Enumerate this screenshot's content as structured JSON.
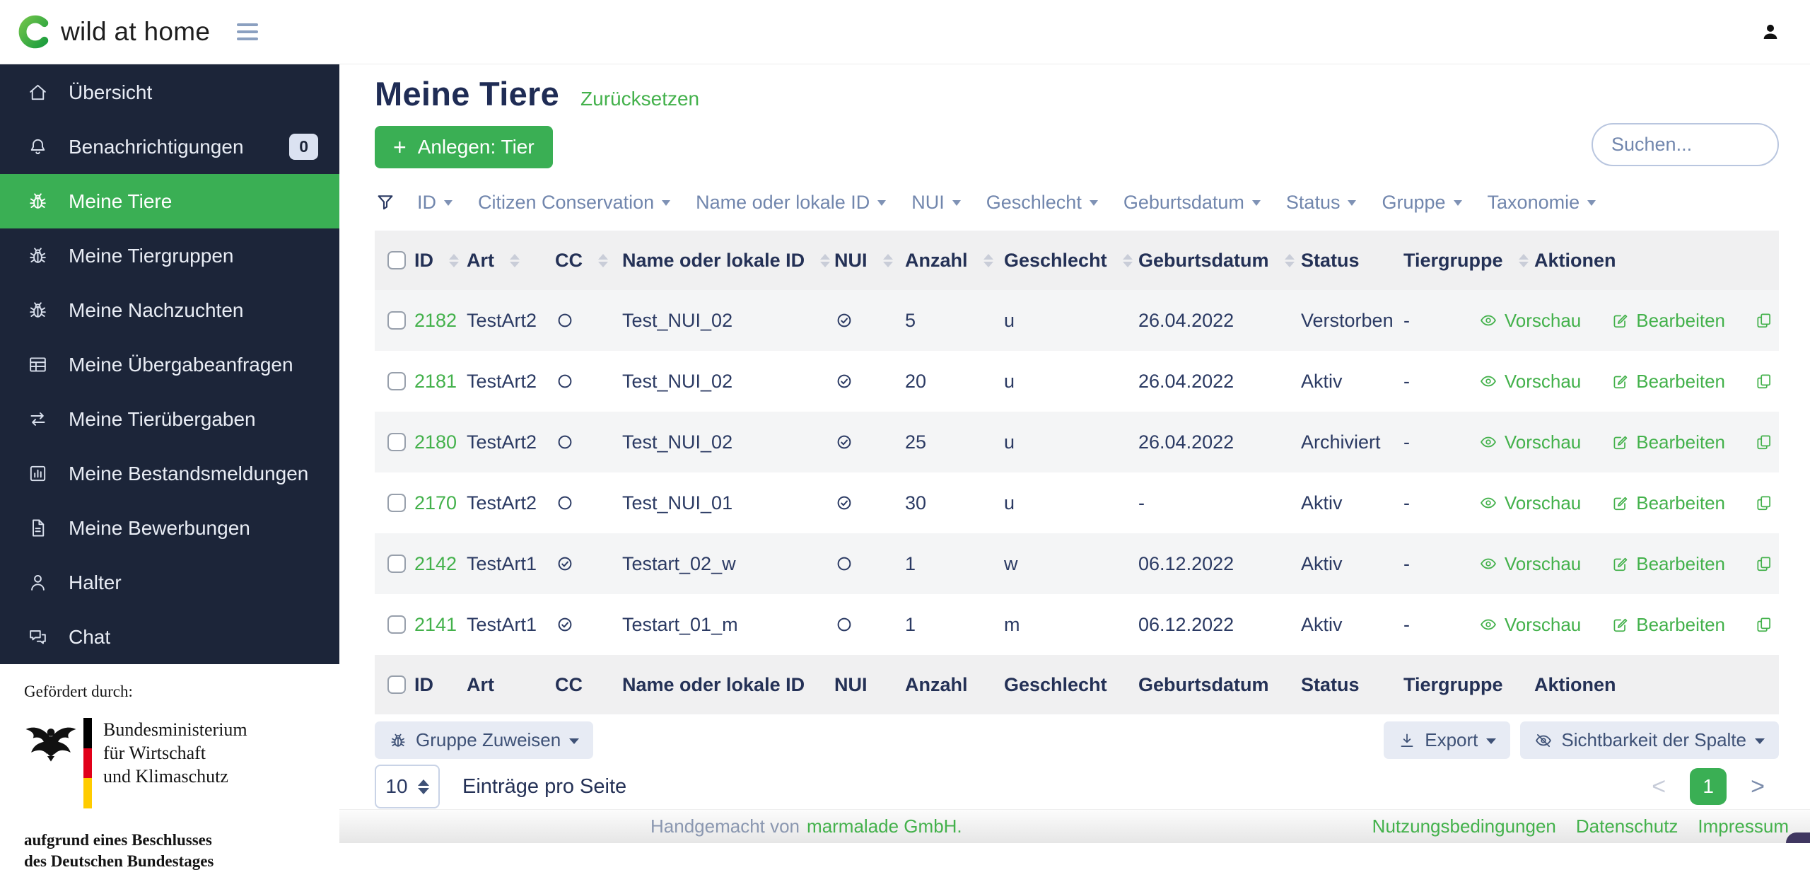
{
  "topbar": {
    "brand": "wild at home"
  },
  "sidebar": {
    "items": [
      {
        "label": "Übersicht",
        "icon": "home"
      },
      {
        "label": "Benachrichtigungen",
        "icon": "bell",
        "badge": "0"
      },
      {
        "label": "Meine Tiere",
        "icon": "bug",
        "active": true
      },
      {
        "label": "Meine Tiergruppen",
        "icon": "bug"
      },
      {
        "label": "Meine Nachzuchten",
        "icon": "bug"
      },
      {
        "label": "Meine Übergabeanfragen",
        "icon": "table"
      },
      {
        "label": "Meine Tierübergaben",
        "icon": "transfer"
      },
      {
        "label": "Meine Bestandsmeldungen",
        "icon": "chart"
      },
      {
        "label": "Meine Bewerbungen",
        "icon": "document"
      },
      {
        "label": "Halter",
        "icon": "person"
      },
      {
        "label": "Chat",
        "icon": "chat"
      }
    ],
    "funding": {
      "heading": "Gefördert durch:",
      "ministry_lines": [
        "Bundesministerium",
        "für Wirtschaft",
        "und Klimaschutz"
      ],
      "note_lines": [
        "aufgrund eines Beschlusses",
        "des Deutschen Bundestages"
      ]
    }
  },
  "page": {
    "title": "Meine Tiere",
    "reset_link": "Zurücksetzen",
    "create_plus": "+",
    "create_label": "Anlegen: Tier",
    "search_placeholder": "Suchen..."
  },
  "filters": [
    "ID",
    "Citizen Conservation",
    "Name oder lokale ID",
    "NUI",
    "Geschlecht",
    "Geburtsdatum",
    "Status",
    "Gruppe",
    "Taxonomie"
  ],
  "table": {
    "columns": [
      {
        "label": "ID",
        "sortable": true
      },
      {
        "label": "Art",
        "sortable": true
      },
      {
        "label": "CC",
        "sortable": true
      },
      {
        "label": "Name oder lokale ID",
        "sortable": true
      },
      {
        "label": "NUI",
        "sortable": true
      },
      {
        "label": "Anzahl",
        "sortable": true
      },
      {
        "label": "Geschlecht",
        "sortable": true
      },
      {
        "label": "Geburtsdatum",
        "sortable": true
      },
      {
        "label": "Status",
        "sortable": false
      },
      {
        "label": "Tiergruppe",
        "sortable": true
      },
      {
        "label": "Aktionen",
        "sortable": false
      }
    ],
    "rows": [
      {
        "id": "2182",
        "art": "TestArt2",
        "cc": false,
        "name": "Test_NUI_02",
        "nui": true,
        "anzahl": "5",
        "geschlecht": "u",
        "geburtsdatum": "26.04.2022",
        "status": "Verstorben",
        "tiergruppe": "-"
      },
      {
        "id": "2181",
        "art": "TestArt2",
        "cc": false,
        "name": "Test_NUI_02",
        "nui": true,
        "anzahl": "20",
        "geschlecht": "u",
        "geburtsdatum": "26.04.2022",
        "status": "Aktiv",
        "tiergruppe": "-"
      },
      {
        "id": "2180",
        "art": "TestArt2",
        "cc": false,
        "name": "Test_NUI_02",
        "nui": true,
        "anzahl": "25",
        "geschlecht": "u",
        "geburtsdatum": "26.04.2022",
        "status": "Archiviert",
        "tiergruppe": "-"
      },
      {
        "id": "2170",
        "art": "TestArt2",
        "cc": false,
        "name": "Test_NUI_01",
        "nui": true,
        "anzahl": "30",
        "geschlecht": "u",
        "geburtsdatum": "-",
        "status": "Aktiv",
        "tiergruppe": "-"
      },
      {
        "id": "2142",
        "art": "TestArt1",
        "cc": true,
        "name": "Testart_02_w",
        "nui": false,
        "anzahl": "1",
        "geschlecht": "w",
        "geburtsdatum": "06.12.2022",
        "status": "Aktiv",
        "tiergruppe": "-"
      },
      {
        "id": "2141",
        "art": "TestArt1",
        "cc": true,
        "name": "Testart_01_m",
        "nui": false,
        "anzahl": "1",
        "geschlecht": "m",
        "geburtsdatum": "06.12.2022",
        "status": "Aktiv",
        "tiergruppe": "-"
      }
    ],
    "actions": {
      "preview": "Vorschau",
      "edit": "Bearbeiten"
    }
  },
  "toolbar": {
    "assign_group": "Gruppe Zuweisen",
    "export": "Export",
    "column_visibility": "Sichtbarkeit der Spalte",
    "per_page_value": "10",
    "per_page_label": "Einträge pro Seite",
    "pagination": {
      "prev": "<",
      "current": "1",
      "next": ">"
    }
  },
  "footer": {
    "handmade_prefix": "Handgemacht von",
    "handmade_link": "marmalade GmbH.",
    "links": [
      "Nutzungsbedingungen",
      "Datenschutz",
      "Impressum"
    ]
  },
  "colors": {
    "primary_green": "#3aaf54",
    "link_green": "#43b14b",
    "sidebar_bg": "#1c2539",
    "navy_text": "#27345a",
    "slate_text": "#7186ad",
    "row_stripe": "#f4f5f6",
    "header_bg": "#f0f0f1"
  }
}
